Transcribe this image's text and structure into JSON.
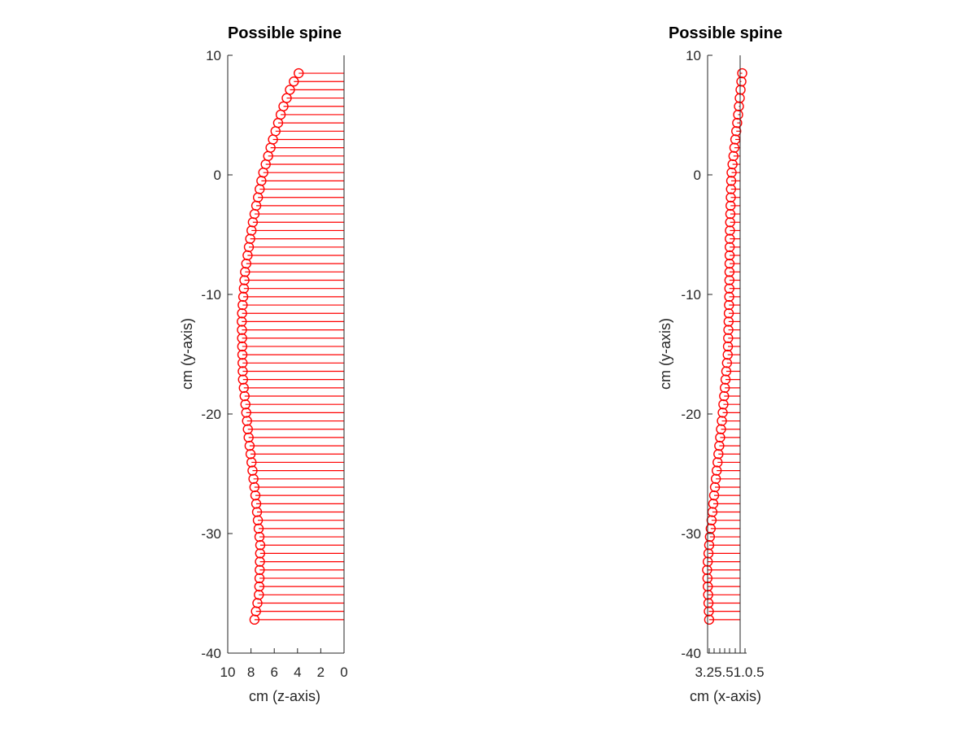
{
  "chart_data": [
    {
      "type": "stem",
      "orientation": "horizontal",
      "title": "Possible spine",
      "xlabel": "cm (z-axis)",
      "ylabel": "cm (y-axis)",
      "xlim": [
        0,
        10
      ],
      "x_reversed": true,
      "ylim": [
        -40,
        10
      ],
      "xticks": [
        "10",
        "8",
        "6",
        "4",
        "2",
        "0"
      ],
      "yticks": [
        "10",
        "0",
        "-10",
        "-20",
        "-30",
        "-40"
      ],
      "marker": "circle",
      "color": "#ff0000",
      "y_range": [
        -37.2,
        8.5
      ],
      "n_points": 67,
      "curve_keypoints": [
        {
          "y": 8.5,
          "x": 3.9
        },
        {
          "y": 7.5,
          "x": 4.5
        },
        {
          "y": 5.5,
          "x": 5.3
        },
        {
          "y": 3.0,
          "x": 6.1
        },
        {
          "y": 0.0,
          "x": 7.0
        },
        {
          "y": -4.0,
          "x": 7.85
        },
        {
          "y": -8.0,
          "x": 8.5
        },
        {
          "y": -12.0,
          "x": 8.8
        },
        {
          "y": -17.0,
          "x": 8.7
        },
        {
          "y": -22.0,
          "x": 8.2
        },
        {
          "y": -27.0,
          "x": 7.6
        },
        {
          "y": -31.0,
          "x": 7.2
        },
        {
          "y": -35.0,
          "x": 7.3
        },
        {
          "y": -37.2,
          "x": 7.7
        }
      ]
    },
    {
      "type": "stem",
      "orientation": "horizontal",
      "title": "Possible spine",
      "xlabel": "cm (x-axis)",
      "ylabel": "cm (y-axis)",
      "ylim": [
        -40,
        10
      ],
      "yticks": [
        "10",
        "0",
        "-10",
        "-20",
        "-30",
        "-40"
      ],
      "xtick_text": "3.25.51.0.5",
      "marker": "circle",
      "color": "#ff0000",
      "y_range": [
        -37.2,
        8.5
      ],
      "n_points": 67,
      "curve_keypoints": [
        {
          "y": 8.5,
          "x": -0.2
        },
        {
          "y": 5.0,
          "x": 0.2
        },
        {
          "y": 0.0,
          "x": 0.85
        },
        {
          "y": -5.0,
          "x": 1.0
        },
        {
          "y": -10.0,
          "x": 1.05
        },
        {
          "y": -15.0,
          "x": 1.2
        },
        {
          "y": -20.0,
          "x": 1.7
        },
        {
          "y": -25.0,
          "x": 2.3
        },
        {
          "y": -30.0,
          "x": 2.9
        },
        {
          "y": -33.0,
          "x": 3.2
        },
        {
          "y": -37.2,
          "x": 3.0
        }
      ]
    }
  ]
}
